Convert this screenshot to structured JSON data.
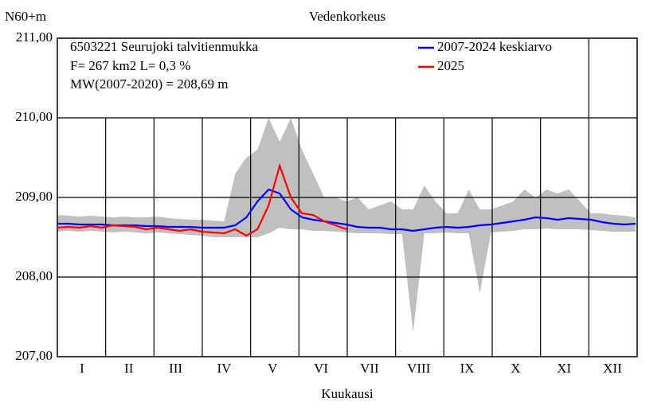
{
  "chart_data": {
    "type": "line",
    "title": "Vedenkorkeus",
    "y_label": "N60+m",
    "x_label": "Kuukausi",
    "annotations": [
      "6503221 Seurujoki talvitienmukka",
      "F=    267 km2 L=  0,3 %",
      "MW(2007-2020) = 208,69 m"
    ],
    "xlim": [
      0,
      365
    ],
    "xticks": [
      {
        "value": 15.5,
        "label": "I"
      },
      {
        "value": 45,
        "label": "II"
      },
      {
        "value": 74.5,
        "label": "III"
      },
      {
        "value": 105,
        "label": "IV"
      },
      {
        "value": 135.5,
        "label": "V"
      },
      {
        "value": 166,
        "label": "VI"
      },
      {
        "value": 196.5,
        "label": "VII"
      },
      {
        "value": 227.5,
        "label": "VIII"
      },
      {
        "value": 258,
        "label": "IX"
      },
      {
        "value": 288.5,
        "label": "X"
      },
      {
        "value": 319,
        "label": "XI"
      },
      {
        "value": 349.5,
        "label": "XII"
      }
    ],
    "ylim": [
      207,
      211
    ],
    "yticks": [
      {
        "value": 207,
        "label": "207,00"
      },
      {
        "value": 208,
        "label": "208,00"
      },
      {
        "value": 209,
        "label": "209,00"
      },
      {
        "value": 210,
        "label": "210,00"
      },
      {
        "value": 211,
        "label": "211,00"
      }
    ],
    "grid": true,
    "legend": "top-right",
    "x": [
      0,
      7,
      14,
      21,
      28,
      35,
      42,
      49,
      56,
      63,
      70,
      77,
      84,
      91,
      98,
      105,
      112,
      119,
      126,
      133,
      140,
      147,
      154,
      161,
      168,
      175,
      182,
      189,
      196,
      203,
      210,
      217,
      224,
      231,
      238,
      245,
      252,
      259,
      266,
      273,
      280,
      287,
      294,
      301,
      308,
      315,
      322,
      329,
      336,
      343,
      350,
      357,
      364
    ],
    "band": {
      "color": "#c0c0c0",
      "high": [
        208.78,
        208.77,
        208.76,
        208.77,
        208.76,
        208.75,
        208.76,
        208.75,
        208.75,
        208.76,
        208.74,
        208.73,
        208.72,
        208.72,
        208.71,
        208.7,
        209.3,
        209.5,
        209.6,
        210.0,
        209.7,
        210.0,
        209.6,
        209.3,
        209.0,
        209.0,
        208.95,
        209.0,
        208.85,
        208.9,
        208.95,
        208.85,
        208.85,
        209.15,
        208.95,
        208.8,
        208.8,
        209.1,
        208.85,
        208.85,
        208.9,
        208.95,
        209.1,
        209.0,
        209.1,
        209.05,
        209.1,
        208.95,
        208.8,
        208.8,
        208.78,
        208.77,
        208.75
      ],
      "low": [
        208.57,
        208.58,
        208.57,
        208.58,
        208.57,
        208.56,
        208.57,
        208.56,
        208.55,
        208.56,
        208.55,
        208.54,
        208.53,
        208.52,
        208.5,
        208.5,
        208.5,
        208.5,
        208.5,
        208.55,
        208.62,
        208.6,
        208.6,
        208.58,
        208.58,
        208.57,
        208.56,
        208.55,
        208.55,
        208.55,
        208.54,
        208.54,
        207.3,
        208.55,
        208.55,
        208.56,
        208.55,
        208.55,
        207.8,
        208.56,
        208.57,
        208.58,
        208.6,
        208.6,
        208.61,
        208.6,
        208.6,
        208.6,
        208.59,
        208.58,
        208.57,
        208.57,
        208.57
      ]
    },
    "series": [
      {
        "name": "2007-2024 keskiarvo",
        "color": "#0000ff",
        "values": [
          208.67,
          208.67,
          208.66,
          208.66,
          208.66,
          208.65,
          208.65,
          208.65,
          208.64,
          208.64,
          208.63,
          208.63,
          208.63,
          208.62,
          208.62,
          208.62,
          208.65,
          208.75,
          208.95,
          209.1,
          209.05,
          208.85,
          208.75,
          208.72,
          208.7,
          208.68,
          208.66,
          208.63,
          208.62,
          208.62,
          208.6,
          208.6,
          208.58,
          208.6,
          208.62,
          208.63,
          208.62,
          208.63,
          208.65,
          208.66,
          208.68,
          208.7,
          208.72,
          208.75,
          208.74,
          208.72,
          208.74,
          208.73,
          208.72,
          208.69,
          208.67,
          208.66,
          208.67
        ]
      },
      {
        "name": "2025",
        "color": "#ff0000",
        "values": [
          208.62,
          208.63,
          208.62,
          208.64,
          208.62,
          208.65,
          208.64,
          208.63,
          208.6,
          208.62,
          208.6,
          208.58,
          208.6,
          208.57,
          208.56,
          208.55,
          208.6,
          208.52,
          208.6,
          208.9,
          209.4,
          209.0,
          208.8,
          208.78,
          208.7,
          208.65,
          208.6,
          null,
          null,
          null,
          null,
          null,
          null,
          null,
          null,
          null,
          null,
          null,
          null,
          null,
          null,
          null,
          null,
          null,
          null,
          null,
          null,
          null,
          null,
          null,
          null,
          null,
          null
        ]
      }
    ]
  }
}
